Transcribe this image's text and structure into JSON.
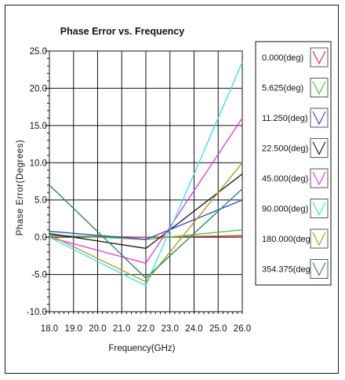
{
  "chart_data": {
    "type": "line",
    "title": "Phase Error vs. Frequency",
    "xlabel": "Frequency(GHz)",
    "ylabel": "Phase Error(Degrees)",
    "xlim": [
      18.0,
      26.0
    ],
    "ylim": [
      -10.0,
      25.0
    ],
    "x_ticks": [
      "18.0",
      "19.0",
      "20.0",
      "21.0",
      "22.0",
      "23.0",
      "24.0",
      "25.0",
      "26.0"
    ],
    "y_ticks": [
      "25.0",
      "20.0",
      "15.0",
      "10.0",
      "5.0",
      "0.0",
      "-5.0",
      "-10.0"
    ],
    "grid": true,
    "legend_position": "right",
    "x": [
      18.0,
      22.0,
      26.0
    ],
    "series": [
      {
        "name": "0.000(deg)",
        "color": "#e8303a",
        "values": [
          0.2,
          0.0,
          0.2
        ]
      },
      {
        "name": "5.625(deg)",
        "color": "#3fcf3f",
        "values": [
          0.3,
          -0.3,
          1.0
        ]
      },
      {
        "name": "11.250(deg)",
        "color": "#2f4fd8",
        "values": [
          0.8,
          -0.3,
          5.0
        ]
      },
      {
        "name": "22.500(deg)",
        "color": "#222222",
        "values": [
          0.5,
          -1.5,
          8.5
        ]
      },
      {
        "name": "45.000(deg)",
        "color": "#e040e0",
        "values": [
          0.0,
          -3.5,
          16.0
        ]
      },
      {
        "name": "90.000(deg)",
        "color": "#40e0e8",
        "values": [
          0.0,
          -6.5,
          23.5
        ]
      },
      {
        "name": "180.000(deg)",
        "color": "#a8a028",
        "values": [
          0.3,
          -6.0,
          10.0
        ]
      },
      {
        "name": "354.375(deg)",
        "color": "#2f8a6a",
        "values": [
          7.0,
          -5.5,
          6.5
        ]
      }
    ]
  }
}
